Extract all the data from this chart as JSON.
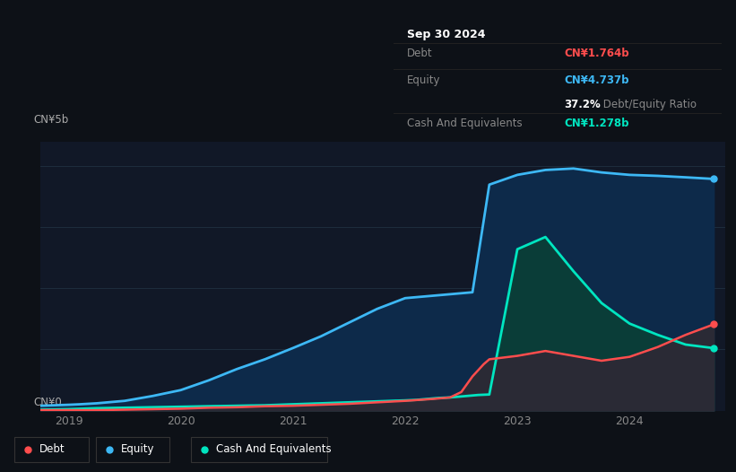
{
  "background_color": "#0d1117",
  "plot_bg_color": "#111827",
  "y_label_top": "CN¥5b",
  "y_label_bottom": "CN¥0",
  "grid_color": "#1e2d3d",
  "legend_items": [
    "Debt",
    "Equity",
    "Cash And Equivalents"
  ],
  "legend_colors": [
    "#ff4d4d",
    "#3db8f5",
    "#00e5c0"
  ],
  "tooltip": {
    "date": "Sep 30 2024",
    "debt_label": "Debt",
    "debt_value": "CN¥1.764b",
    "equity_label": "Equity",
    "equity_value": "CN¥4.737b",
    "ratio": "37.2%",
    "ratio_label": " Debt/Equity Ratio",
    "cash_label": "Cash And Equivalents",
    "cash_value": "CN¥1.278b",
    "debt_color": "#ff4d4d",
    "equity_color": "#3db8f5",
    "cash_color": "#00e5c0",
    "ratio_color": "#ffffff",
    "label_color": "#888888"
  },
  "equity": {
    "x": [
      2018.75,
      2019.0,
      2019.1,
      2019.25,
      2019.5,
      2019.75,
      2020.0,
      2020.25,
      2020.5,
      2020.75,
      2021.0,
      2021.25,
      2021.5,
      2021.75,
      2022.0,
      2022.1,
      2022.15,
      2022.2,
      2022.3,
      2022.4,
      2022.5,
      2022.55,
      2022.6,
      2022.75,
      2023.0,
      2023.25,
      2023.5,
      2023.75,
      2024.0,
      2024.25,
      2024.5,
      2024.75
    ],
    "y": [
      0.1,
      0.12,
      0.13,
      0.15,
      0.2,
      0.3,
      0.42,
      0.62,
      0.85,
      1.05,
      1.28,
      1.52,
      1.8,
      2.08,
      2.3,
      2.32,
      2.33,
      2.34,
      2.36,
      2.38,
      2.4,
      2.41,
      2.42,
      4.62,
      4.82,
      4.92,
      4.95,
      4.87,
      4.82,
      4.8,
      4.77,
      4.737
    ],
    "color": "#3db8f5",
    "fill_alpha": 0.7,
    "line_width": 2.0
  },
  "cash": {
    "x": [
      2018.75,
      2019.0,
      2019.25,
      2019.5,
      2019.75,
      2020.0,
      2020.25,
      2020.5,
      2020.75,
      2021.0,
      2021.25,
      2021.5,
      2021.75,
      2022.0,
      2022.1,
      2022.2,
      2022.3,
      2022.4,
      2022.5,
      2022.55,
      2022.6,
      2022.65,
      2022.75,
      2023.0,
      2023.25,
      2023.5,
      2023.75,
      2024.0,
      2024.25,
      2024.5,
      2024.75
    ],
    "y": [
      0.02,
      0.03,
      0.05,
      0.06,
      0.07,
      0.08,
      0.09,
      0.1,
      0.11,
      0.13,
      0.15,
      0.17,
      0.19,
      0.21,
      0.22,
      0.24,
      0.26,
      0.27,
      0.29,
      0.3,
      0.31,
      0.32,
      0.33,
      3.3,
      3.55,
      2.85,
      2.2,
      1.78,
      1.55,
      1.35,
      1.278
    ],
    "color": "#00e5c0",
    "fill_alpha": 0.65,
    "line_width": 2.0
  },
  "debt": {
    "x": [
      2018.75,
      2019.0,
      2019.25,
      2019.5,
      2019.75,
      2020.0,
      2020.25,
      2020.5,
      2020.75,
      2021.0,
      2021.25,
      2021.5,
      2021.75,
      2022.0,
      2022.25,
      2022.4,
      2022.5,
      2022.6,
      2022.7,
      2022.75,
      2023.0,
      2023.25,
      2023.5,
      2023.75,
      2024.0,
      2024.25,
      2024.5,
      2024.75
    ],
    "y": [
      0.01,
      0.01,
      0.01,
      0.02,
      0.03,
      0.04,
      0.06,
      0.07,
      0.09,
      0.1,
      0.12,
      0.14,
      0.17,
      0.2,
      0.24,
      0.27,
      0.38,
      0.7,
      0.95,
      1.05,
      1.12,
      1.22,
      1.12,
      1.02,
      1.1,
      1.3,
      1.55,
      1.764
    ],
    "color": "#ff4d4d",
    "fill_alpha": 0.6,
    "line_width": 1.8
  },
  "ylim": [
    0,
    5.5
  ],
  "xlim": [
    2018.75,
    2024.85
  ],
  "yticks": [
    0,
    1.25,
    2.5,
    3.75,
    5.0
  ],
  "xticks": [
    2019,
    2020,
    2021,
    2022,
    2023,
    2024
  ]
}
